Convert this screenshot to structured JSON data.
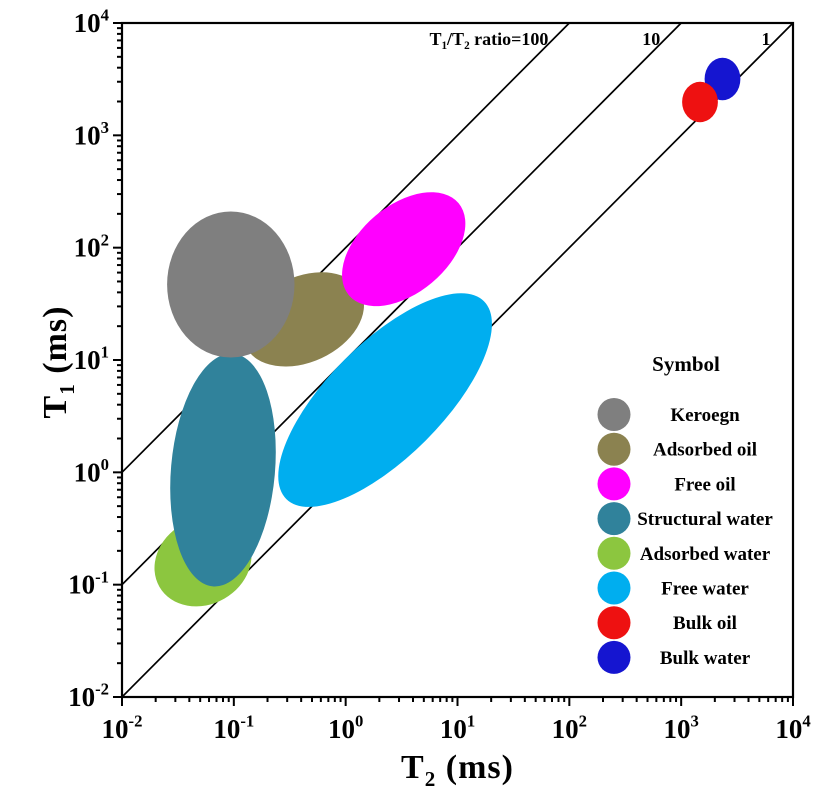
{
  "colors": {
    "background": "#ffffff",
    "axis": "#000000"
  },
  "chart_data": {
    "type": "scatter",
    "title": "",
    "description": "T1-T2 NMR log-log cross plot with fluid component regions",
    "xlabel_parts": [
      {
        "t": "T"
      },
      {
        "t": "2",
        "sub": true
      },
      {
        "t": " (ms)"
      }
    ],
    "ylabel_parts": [
      {
        "t": "T"
      },
      {
        "t": "1",
        "sub": true
      },
      {
        "t": " (ms)"
      }
    ],
    "x_axis": {
      "scale": "log",
      "unit": "ms",
      "range_exponents": [
        -2,
        4
      ],
      "tick_exponents": [
        -2,
        -1,
        0,
        1,
        2,
        3,
        4
      ]
    },
    "y_axis": {
      "scale": "log",
      "unit": "ms",
      "range_exponents": [
        -2,
        4
      ],
      "tick_exponents": [
        -2,
        -1,
        0,
        1,
        2,
        3,
        4
      ]
    },
    "grid": false,
    "ratio_lines": [
      {
        "ratio": 100,
        "label_parts": [
          {
            "t": "T"
          },
          {
            "t": "1",
            "sub": true
          },
          {
            "t": "/T"
          },
          {
            "t": "2",
            "sub": true
          },
          {
            "t": " ratio=100"
          }
        ],
        "label_at": {
          "t2_ms": 65,
          "t1_ms": 6400
        },
        "anchor": "end"
      },
      {
        "ratio": 10,
        "label_parts": [
          {
            "t": "10"
          }
        ],
        "label_at": {
          "t2_ms": 650,
          "t1_ms": 6400
        },
        "anchor": "end"
      },
      {
        "ratio": 1,
        "label_parts": [
          {
            "t": "1"
          }
        ],
        "label_at": {
          "t2_ms": 6300,
          "t1_ms": 6400
        },
        "anchor": "end"
      }
    ],
    "components": [
      {
        "name": "Keroegn",
        "key": "kerogen",
        "color": "#7f7f7f",
        "center": {
          "t2_ms": 0.094,
          "t1_ms": 47
        },
        "radii_decades": {
          "rx": 0.57,
          "ry": 0.65
        },
        "rotation_deg": 0,
        "z": 6
      },
      {
        "name": "Adsorbed oil",
        "key": "adsorbed-oil",
        "color": "#8b8250",
        "center": {
          "t2_ms": 0.42,
          "t1_ms": 23
        },
        "radii_decades": {
          "rx": 0.57,
          "ry": 0.38
        },
        "rotation_deg": -25,
        "z": 4
      },
      {
        "name": "Free oil",
        "key": "free-oil",
        "color": "#ff00ff",
        "center": {
          "t2_ms": 3.3,
          "t1_ms": 97
        },
        "radii_decades": {
          "rx": 0.64,
          "ry": 0.39
        },
        "rotation_deg": -40,
        "z": 5
      },
      {
        "name": "Structural water",
        "key": "structural-water",
        "color": "#30829b",
        "center": {
          "t2_ms": 0.08,
          "t1_ms": 1.05
        },
        "radii_decades": {
          "rx": 0.465,
          "ry": 1.04
        },
        "rotation_deg": 5,
        "z": 3
      },
      {
        "name": "Adsorbed water",
        "key": "adsorbed-water",
        "color": "#8cc63f",
        "center": {
          "t2_ms": 0.053,
          "t1_ms": 0.16
        },
        "radii_decades": {
          "rx": 0.45,
          "ry": 0.38
        },
        "rotation_deg": -30,
        "z": 2
      },
      {
        "name": "Free water",
        "key": "free-water",
        "color": "#00aeef",
        "center": {
          "t2_ms": 2.25,
          "t1_ms": 4.4
        },
        "radii_decades": {
          "rx": 1.25,
          "ry": 0.51
        },
        "rotation_deg": -45,
        "z": 1
      },
      {
        "name": "Bulk oil",
        "key": "bulk-oil",
        "color": "#ee1111",
        "center": {
          "t2_ms": 1475,
          "t1_ms": 1980
        },
        "radii_decades": {
          "rx": 0.16,
          "ry": 0.18
        },
        "rotation_deg": 0,
        "z": 8
      },
      {
        "name": "Bulk water",
        "key": "bulk-water",
        "color": "#1515d0",
        "center": {
          "t2_ms": 2340,
          "t1_ms": 3170
        },
        "radii_decades": {
          "rx": 0.16,
          "ry": 0.19
        },
        "rotation_deg": 0,
        "z": 7
      }
    ],
    "legend": {
      "title": "Symbol",
      "position": "inside-right"
    }
  }
}
